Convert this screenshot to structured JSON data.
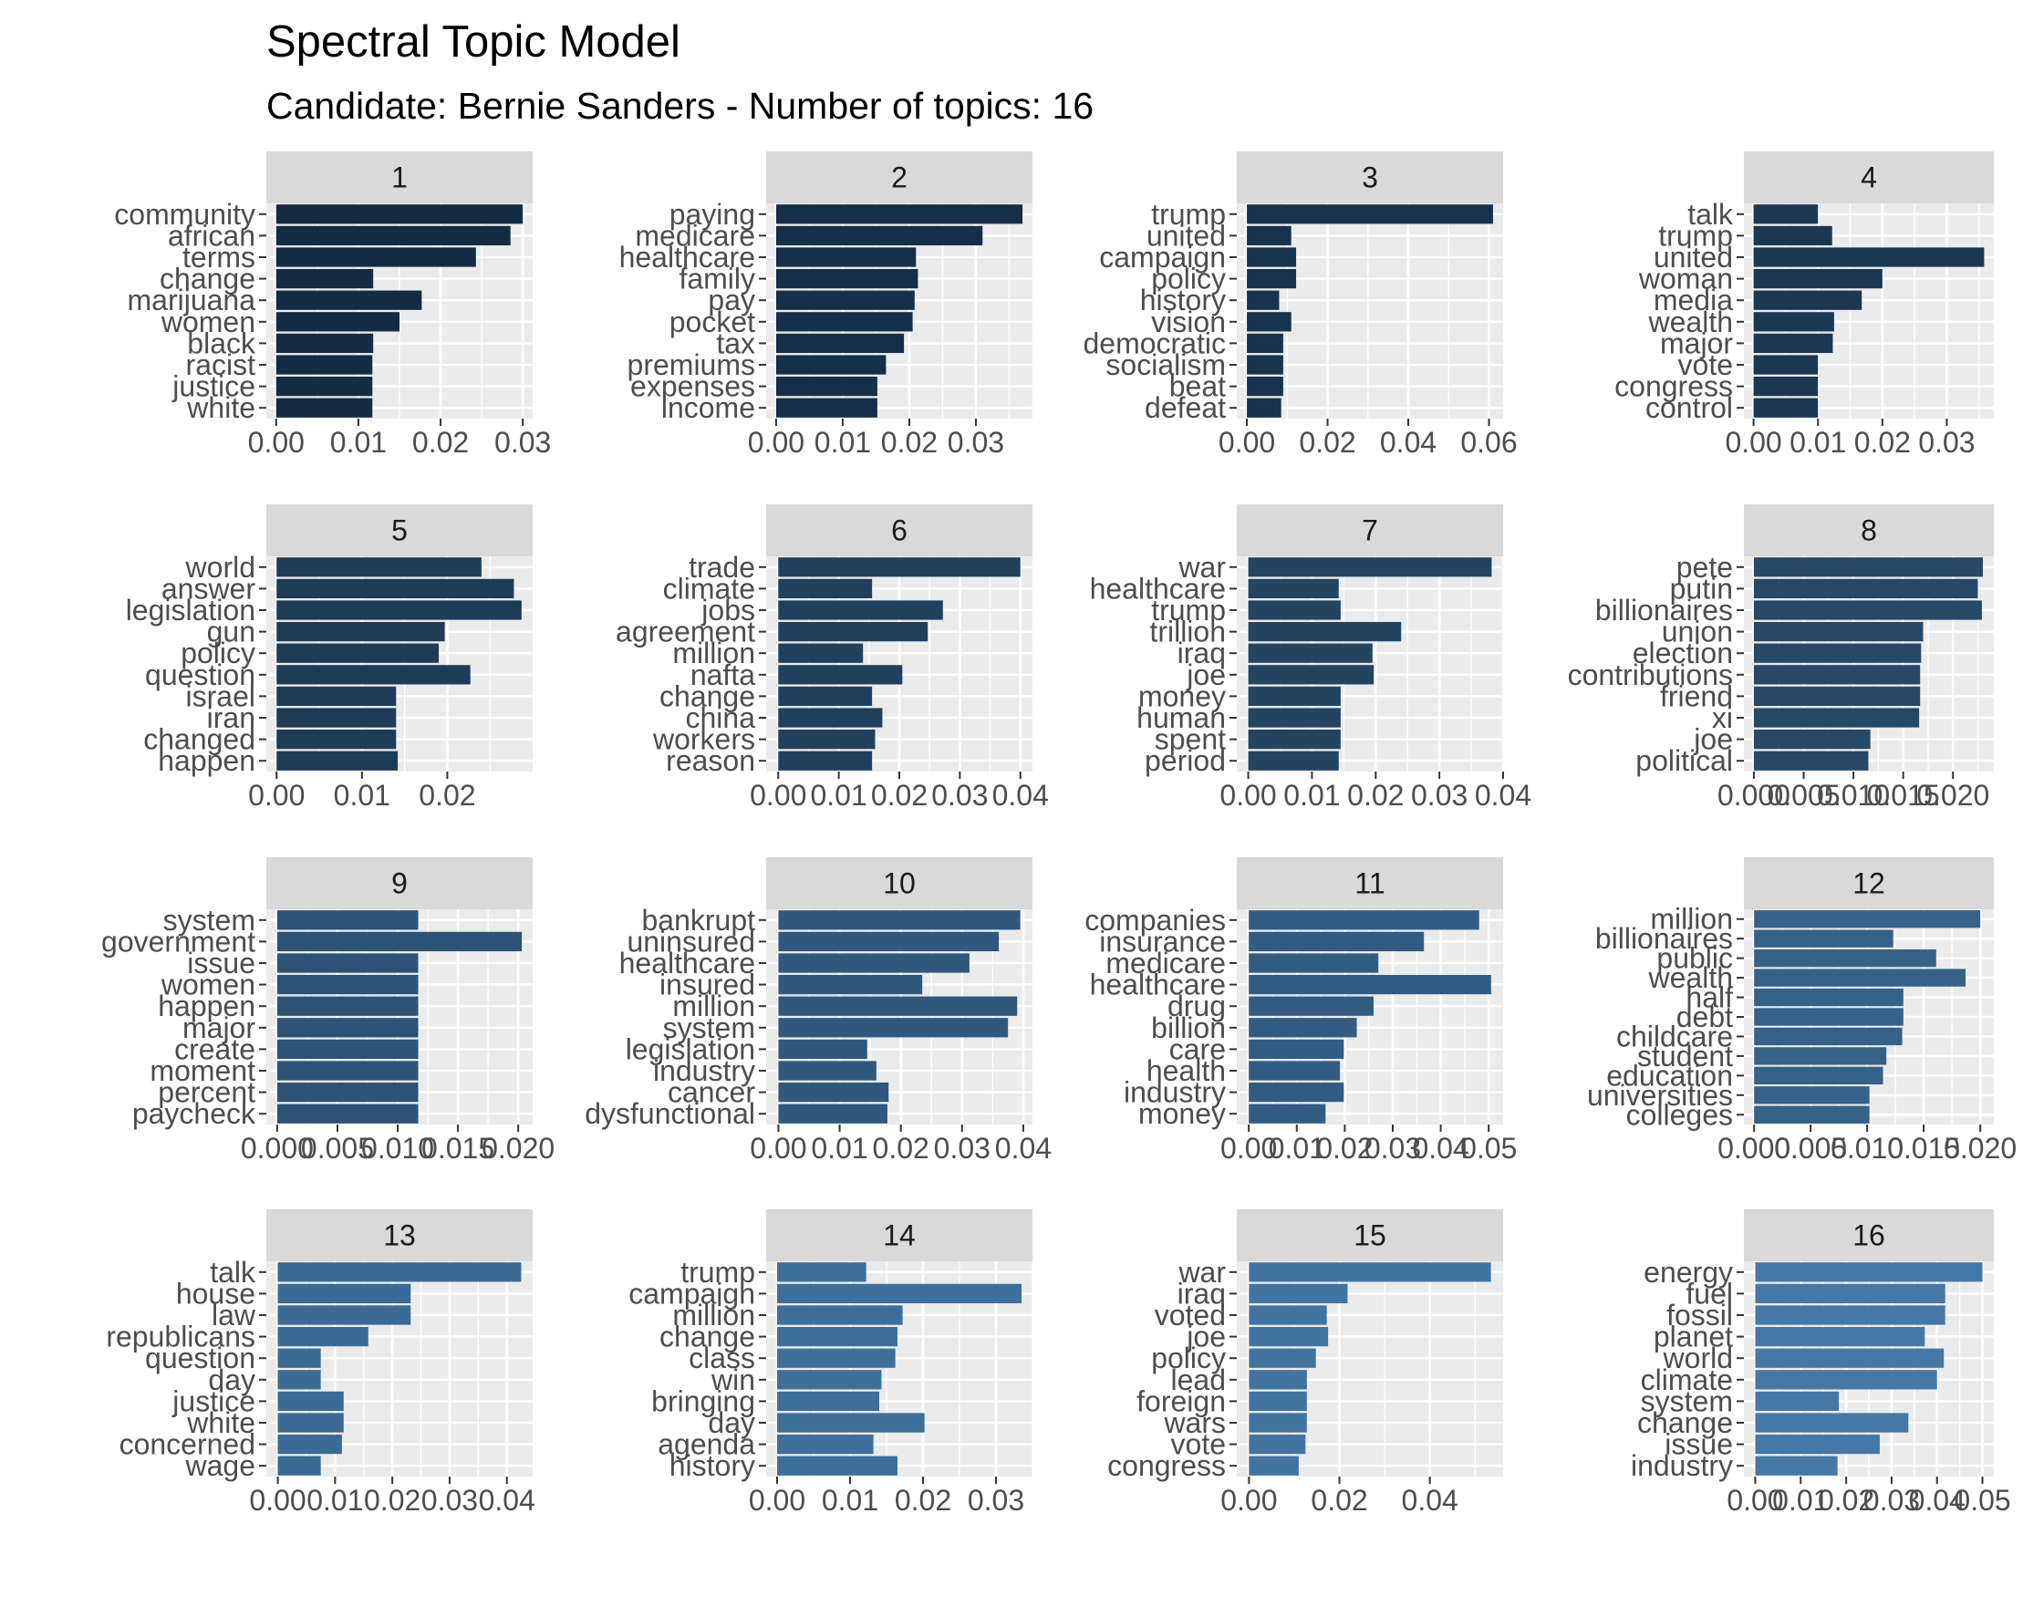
{
  "title": "Spectral Topic Model",
  "subtitle": "Candidate: Bernie Sanders - Number of topics: 16",
  "chart_data": {
    "type": "bar",
    "orientation": "horizontal",
    "facet_layout": "4x4",
    "scales": "free",
    "grid": true,
    "panels": [
      {
        "label": "1",
        "color": "#132B43",
        "terms": [
          "community",
          "african",
          "terms",
          "change",
          "marijuana",
          "women",
          "black",
          "racist",
          "justice",
          "white"
        ],
        "values": [
          0.03,
          0.0285,
          0.0243,
          0.0118,
          0.0177,
          0.015,
          0.0118,
          0.0117,
          0.0117,
          0.0117
        ],
        "xlim": [
          -0.0012,
          0.0312
        ],
        "ticks": [
          0.0,
          0.01,
          0.02,
          0.03
        ],
        "tick_labels": [
          "0.00",
          "0.01",
          "0.02",
          "0.03"
        ]
      },
      {
        "label": "2",
        "color": "#152F48",
        "terms": [
          "paying",
          "medicare",
          "healthcare",
          "family",
          "pay",
          "pocket",
          "tax",
          "premiums",
          "expenses",
          "income"
        ],
        "values": [
          0.037,
          0.031,
          0.021,
          0.0213,
          0.0208,
          0.0205,
          0.0192,
          0.0165,
          0.0152,
          0.0152
        ],
        "xlim": [
          -0.0015,
          0.0385
        ],
        "ticks": [
          0.0,
          0.01,
          0.02,
          0.03
        ],
        "tick_labels": [
          "0.00",
          "0.01",
          "0.02",
          "0.03"
        ]
      },
      {
        "label": "3",
        "color": "#18334D",
        "terms": [
          "trump",
          "united",
          "campaign",
          "policy",
          "history",
          "vision",
          "democratic",
          "socialism",
          "beat",
          "defeat"
        ],
        "values": [
          0.061,
          0.011,
          0.0122,
          0.0122,
          0.008,
          0.011,
          0.009,
          0.009,
          0.009,
          0.0085
        ],
        "xlim": [
          -0.0025,
          0.0635
        ],
        "ticks": [
          0.0,
          0.02,
          0.04,
          0.06
        ],
        "tick_labels": [
          "0.00",
          "0.02",
          "0.04",
          "0.06"
        ]
      },
      {
        "label": "4",
        "color": "#1B3752",
        "terms": [
          "talk",
          "trump",
          "united",
          "woman",
          "media",
          "wealth",
          "major",
          "vote",
          "congress",
          "control"
        ],
        "values": [
          0.01,
          0.0122,
          0.0358,
          0.02,
          0.0168,
          0.0125,
          0.0123,
          0.01,
          0.01,
          0.01
        ],
        "xlim": [
          -0.0015,
          0.0373
        ],
        "ticks": [
          0.0,
          0.01,
          0.02,
          0.03
        ],
        "tick_labels": [
          "0.00",
          "0.01",
          "0.02",
          "0.03"
        ]
      },
      {
        "label": "5",
        "color": "#1E3C58",
        "terms": [
          "world",
          "answer",
          "legislation",
          "gun",
          "policy",
          "question",
          "israel",
          "iran",
          "changed",
          "happen"
        ],
        "values": [
          0.024,
          0.0278,
          0.0287,
          0.0197,
          0.019,
          0.0227,
          0.014,
          0.014,
          0.014,
          0.0142
        ],
        "xlim": [
          -0.0012,
          0.03
        ],
        "ticks": [
          0.0,
          0.01,
          0.02
        ],
        "tick_labels": [
          "0.00",
          "0.01",
          "0.02"
        ]
      },
      {
        "label": "6",
        "color": "#21405D",
        "terms": [
          "trade",
          "climate",
          "jobs",
          "agreement",
          "million",
          "nafta",
          "change",
          "china",
          "workers",
          "reason"
        ],
        "values": [
          0.04,
          0.0155,
          0.0272,
          0.0247,
          0.014,
          0.0205,
          0.0155,
          0.0172,
          0.016,
          0.0155
        ],
        "xlim": [
          -0.002,
          0.042
        ],
        "ticks": [
          0.0,
          0.01,
          0.02,
          0.03,
          0.04
        ],
        "tick_labels": [
          "0.00",
          "0.01",
          "0.02",
          "0.03",
          "0.04"
        ]
      },
      {
        "label": "7",
        "color": "#244562",
        "terms": [
          "war",
          "healthcare",
          "trump",
          "trillion",
          "iraq",
          "joe",
          "money",
          "human",
          "spent",
          "period"
        ],
        "values": [
          0.0382,
          0.0142,
          0.0145,
          0.024,
          0.0195,
          0.0197,
          0.0145,
          0.0145,
          0.0145,
          0.0142
        ],
        "xlim": [
          -0.0018,
          0.04
        ],
        "ticks": [
          0.0,
          0.01,
          0.02,
          0.03,
          0.04
        ],
        "tick_labels": [
          "0.00",
          "0.01",
          "0.02",
          "0.03",
          "0.04"
        ]
      },
      {
        "label": "8",
        "color": "#274968",
        "terms": [
          "pete",
          "putin",
          "billionaires",
          "union",
          "election",
          "contributions",
          "friend",
          "xi",
          "joe",
          "political"
        ],
        "values": [
          0.023,
          0.0225,
          0.0229,
          0.017,
          0.0168,
          0.0167,
          0.0167,
          0.0166,
          0.0117,
          0.0115
        ],
        "xlim": [
          -0.001,
          0.0241
        ],
        "ticks": [
          0.0,
          0.005,
          0.01,
          0.015,
          0.02
        ],
        "tick_labels": [
          "0.000",
          "0.005",
          "0.010",
          "0.015",
          "0.020"
        ]
      },
      {
        "label": "9",
        "color": "#2C5376",
        "terms": [
          "system",
          "government",
          "issue",
          "women",
          "happen",
          "major",
          "create",
          "moment",
          "percent",
          "paycheck"
        ],
        "values": [
          0.0117,
          0.0203,
          0.0117,
          0.0117,
          0.0117,
          0.0117,
          0.0117,
          0.0117,
          0.0117,
          0.0117
        ],
        "xlim": [
          -0.0009,
          0.0212
        ],
        "ticks": [
          0.0,
          0.005,
          0.01,
          0.015,
          0.02
        ],
        "tick_labels": [
          "0.000",
          "0.005",
          "0.010",
          "0.015",
          "0.020"
        ]
      },
      {
        "label": "10",
        "color": "#30587C",
        "terms": [
          "bankrupt",
          "uninsured",
          "healthcare",
          "insured",
          "million",
          "system",
          "legislation",
          "industry",
          "cancer",
          "dysfunctional"
        ],
        "values": [
          0.0395,
          0.036,
          0.0312,
          0.0235,
          0.039,
          0.0375,
          0.0145,
          0.016,
          0.018,
          0.0178
        ],
        "xlim": [
          -0.002,
          0.0415
        ],
        "ticks": [
          0.0,
          0.01,
          0.02,
          0.03,
          0.04
        ],
        "tick_labels": [
          "0.00",
          "0.01",
          "0.02",
          "0.03",
          "0.04"
        ]
      },
      {
        "label": "11",
        "color": "#335C82",
        "terms": [
          "companies",
          "insurance",
          "medicare",
          "healthcare",
          "drug",
          "billion",
          "care",
          "health",
          "industry",
          "money"
        ],
        "values": [
          0.048,
          0.0365,
          0.027,
          0.0505,
          0.026,
          0.0225,
          0.0198,
          0.019,
          0.0198,
          0.016
        ],
        "xlim": [
          -0.0025,
          0.053
        ],
        "ticks": [
          0.0,
          0.01,
          0.02,
          0.03,
          0.04,
          0.05
        ],
        "tick_labels": [
          "0.00",
          "0.01",
          "0.02",
          "0.03",
          "0.04",
          "0.05"
        ]
      },
      {
        "label": "12",
        "color": "#366188",
        "terms": [
          "million",
          "billionaires",
          "public",
          "wealth",
          "half",
          "debt",
          "childcare",
          "student",
          "education",
          "universities",
          "colleges"
        ],
        "values": [
          0.02,
          0.0123,
          0.0161,
          0.0187,
          0.0132,
          0.0132,
          0.0131,
          0.0117,
          0.0114,
          0.0102,
          0.0102
        ],
        "xlim": [
          -0.0009,
          0.0212
        ],
        "ticks": [
          0.0,
          0.005,
          0.01,
          0.015,
          0.02
        ],
        "tick_labels": [
          "0.000",
          "0.005",
          "0.010",
          "0.015",
          "0.020"
        ]
      },
      {
        "label": "13",
        "color": "#3B6A94",
        "terms": [
          "talk",
          "house",
          "law",
          "republicans",
          "question",
          "day",
          "justice",
          "white",
          "concerned",
          "wage"
        ],
        "values": [
          0.0425,
          0.0232,
          0.0232,
          0.0158,
          0.0075,
          0.0075,
          0.0115,
          0.0115,
          0.0112,
          0.0075
        ],
        "xlim": [
          -0.002,
          0.0445
        ],
        "ticks": [
          0.0,
          0.01,
          0.02,
          0.03,
          0.04
        ],
        "tick_labels": [
          "0.00",
          "0.01",
          "0.02",
          "0.03",
          "0.04"
        ]
      },
      {
        "label": "14",
        "color": "#3E6F9A",
        "terms": [
          "trump",
          "campaign",
          "million",
          "change",
          "class",
          "win",
          "bringing",
          "day",
          "agenda",
          "history"
        ],
        "values": [
          0.0122,
          0.0335,
          0.0172,
          0.0165,
          0.0162,
          0.0143,
          0.014,
          0.0202,
          0.0132,
          0.0165
        ],
        "xlim": [
          -0.0015,
          0.035
        ],
        "ticks": [
          0.0,
          0.01,
          0.02,
          0.03
        ],
        "tick_labels": [
          "0.00",
          "0.01",
          "0.02",
          "0.03"
        ]
      },
      {
        "label": "15",
        "color": "#4274A0",
        "terms": [
          "war",
          "iraq",
          "voted",
          "joe",
          "policy",
          "lead",
          "foreign",
          "wars",
          "vote",
          "congress"
        ],
        "values": [
          0.0535,
          0.0218,
          0.0172,
          0.0175,
          0.0148,
          0.0128,
          0.0128,
          0.0128,
          0.0125,
          0.011
        ],
        "xlim": [
          -0.0027,
          0.0562
        ],
        "ticks": [
          0.0,
          0.02,
          0.04
        ],
        "tick_labels": [
          "0.00",
          "0.02",
          "0.04"
        ]
      },
      {
        "label": "16",
        "color": "#4678A6",
        "terms": [
          "energy",
          "fuel",
          "fossil",
          "planet",
          "world",
          "climate",
          "system",
          "change",
          "issue",
          "industry"
        ],
        "values": [
          0.05,
          0.0418,
          0.0418,
          0.0373,
          0.0415,
          0.04,
          0.0184,
          0.0337,
          0.0274,
          0.0181
        ],
        "xlim": [
          -0.0025,
          0.0525
        ],
        "ticks": [
          0.0,
          0.01,
          0.02,
          0.03,
          0.04,
          0.05
        ],
        "tick_labels": [
          "0.00",
          "0.01",
          "0.02",
          "0.03",
          "0.04",
          "0.05"
        ]
      }
    ]
  }
}
